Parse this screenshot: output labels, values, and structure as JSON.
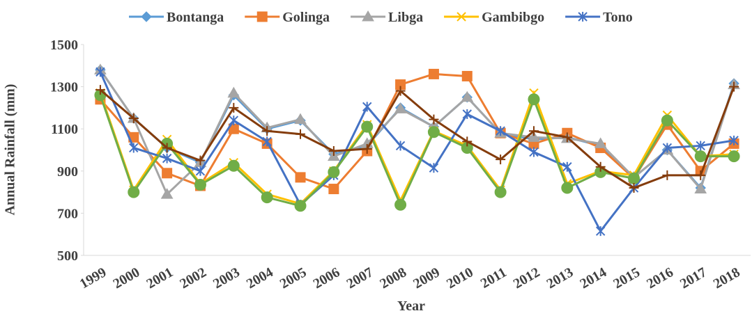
{
  "chart_data": {
    "type": "line",
    "x_label": "Year",
    "y_label": "Annual Rainfall (mm)",
    "categories": [
      "1999",
      "2000",
      "2001",
      "2002",
      "2003",
      "2004",
      "2005",
      "2006",
      "2007",
      "2008",
      "2009",
      "2010",
      "2011",
      "2012",
      "2013",
      "2014",
      "2015",
      "2016",
      "2017",
      "2018"
    ],
    "ylim": [
      500,
      1500
    ],
    "yticks": [
      500,
      700,
      900,
      1100,
      1300,
      1500
    ],
    "series": [
      {
        "name": "Bontanga",
        "color": "#5b9bd5",
        "marker": "diamond",
        "values": [
          1380,
          1150,
          1010,
          940,
          1260,
          1100,
          1140,
          980,
          1020,
          1200,
          1110,
          1250,
          1080,
          1050,
          1060,
          1020,
          870,
          1000,
          820,
          1315
        ]
      },
      {
        "name": "Golinga",
        "color": "#ed7d31",
        "marker": "square",
        "values": [
          1240,
          1060,
          890,
          830,
          1100,
          1030,
          870,
          815,
          995,
          1310,
          1360,
          1350,
          1080,
          1030,
          1080,
          1010,
          865,
          1120,
          900,
          1030
        ]
      },
      {
        "name": "Libga",
        "color": "#a5a5a5",
        "marker": "triangle",
        "values": [
          1380,
          1150,
          790,
          940,
          1270,
          1105,
          1145,
          970,
          1030,
          1195,
          1110,
          1250,
          1080,
          1060,
          1055,
          1030,
          870,
          1000,
          815,
          1310
        ]
      },
      {
        "name": "Gambibgo",
        "color": "#ffc000",
        "marker": "x",
        "values": [
          1270,
          810,
          1050,
          840,
          940,
          790,
          745,
          900,
          1120,
          760,
          1090,
          1020,
          810,
          1270,
          840,
          900,
          880,
          1165,
          970,
          980
        ]
      },
      {
        "name": "Tono",
        "color": "#4472c4",
        "marker": "star",
        "values": [
          1370,
          1010,
          960,
          900,
          1140,
          1040,
          740,
          880,
          1205,
          1020,
          915,
          1170,
          1090,
          990,
          920,
          615,
          820,
          1010,
          1020,
          1045
        ]
      },
      {
        "color": "#70ad47",
        "marker": "circle",
        "values": [
          1260,
          800,
          1030,
          835,
          925,
          775,
          735,
          895,
          1110,
          740,
          1085,
          1010,
          800,
          1240,
          820,
          895,
          865,
          1140,
          970,
          970
        ]
      },
      {
        "color": "#843c0c",
        "marker": "plus",
        "values": [
          1285,
          1150,
          1010,
          950,
          1200,
          1090,
          1075,
          995,
          1005,
          1280,
          1145,
          1040,
          955,
          1090,
          1060,
          920,
          820,
          880,
          880,
          1300
        ]
      }
    ]
  }
}
